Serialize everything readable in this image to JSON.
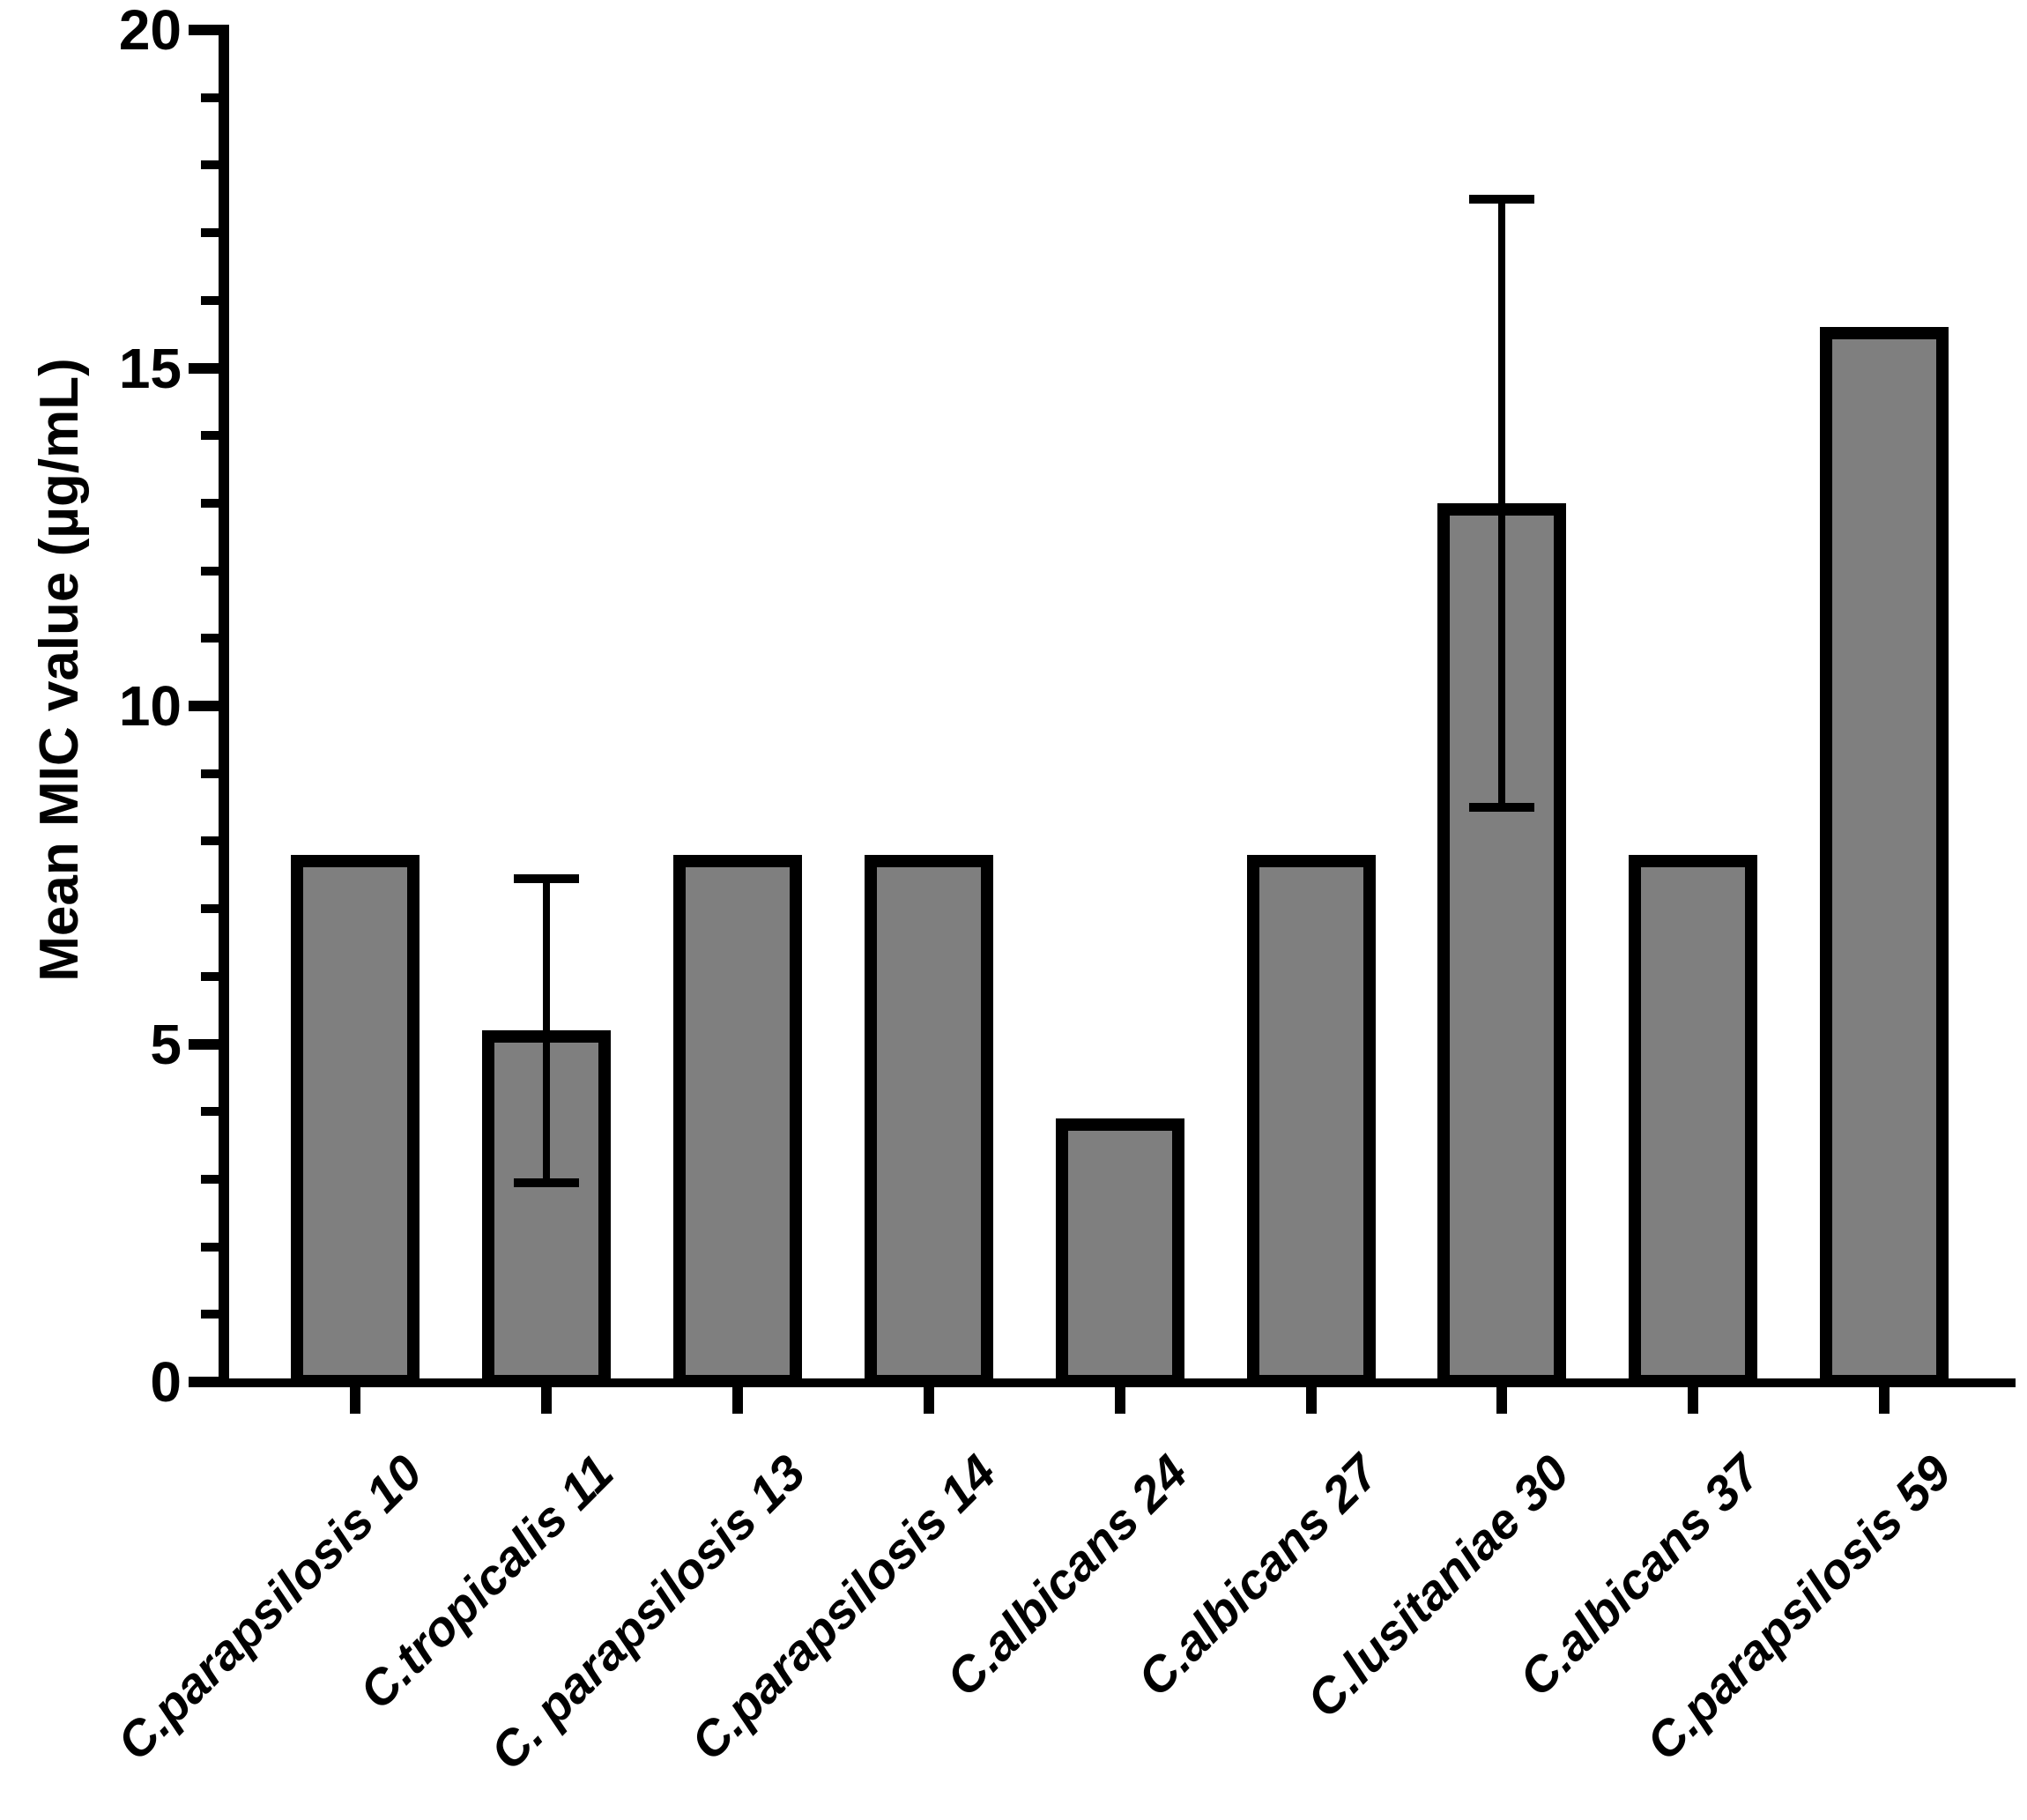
{
  "y_axis": {
    "label": "Mean MIC value (µg/mL)",
    "min": 0,
    "max": 20,
    "major_ticks": [
      0,
      5,
      10,
      15,
      20
    ],
    "minor_tick_step": 1
  },
  "chart_data": {
    "type": "bar",
    "title": "",
    "xlabel": "",
    "ylabel": "Mean MIC value (µg/mL)",
    "ylim": [
      0,
      20
    ],
    "grid": false,
    "legend": false,
    "bar_fill": "#7f7f7f",
    "bar_stroke": "#000000",
    "categories": [
      "C.parapsilosis 10",
      "C.tropicalis 11",
      "C. parapsilosis 13",
      "C.parapsilosis 14",
      "C.albicans 24",
      "C.albicans 27",
      "C.lusitaniae 30",
      "C.albicans 37",
      "C.parapsilosis 59"
    ],
    "values": [
      7.8,
      5.2,
      7.8,
      7.8,
      3.9,
      7.8,
      13.0,
      7.8,
      15.6
    ],
    "error_sd": [
      0,
      2.25,
      0,
      0,
      0,
      0,
      4.5,
      0,
      0
    ],
    "error_bar_style": "mean_plus_minus_sd"
  }
}
